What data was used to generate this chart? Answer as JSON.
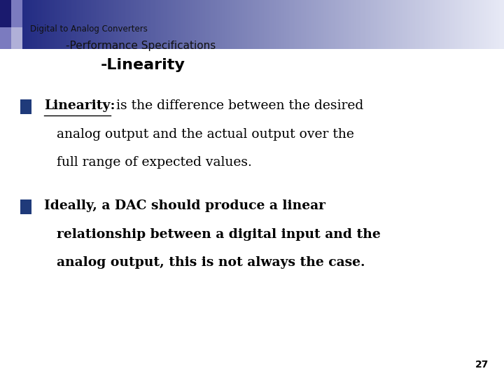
{
  "bg_color": "#ffffff",
  "header_line1": "Digital to Analog Converters",
  "header_line2": "-Performance Specifications",
  "header_line3": "-Linearity",
  "bullet_color": "#1F3A7A",
  "bullet1_bold": "Linearity:",
  "bullet1_line1_rest": " is the difference between the desired",
  "bullet1_line2": "analog output and the actual output over the",
  "bullet1_line3": "full range of expected values.",
  "bullet2_line1": "Ideally, a DAC should produce a linear",
  "bullet2_line2": "relationship between a digital input and the",
  "bullet2_line3": "analog output, this is not always the case.",
  "page_number": "27",
  "header_dark": "#1a237e",
  "header_light": "#e8eaf6",
  "sq_dark": "#1a1a6e",
  "sq_mid": "#7b7bbf",
  "sq_light": "#b0b0d8"
}
